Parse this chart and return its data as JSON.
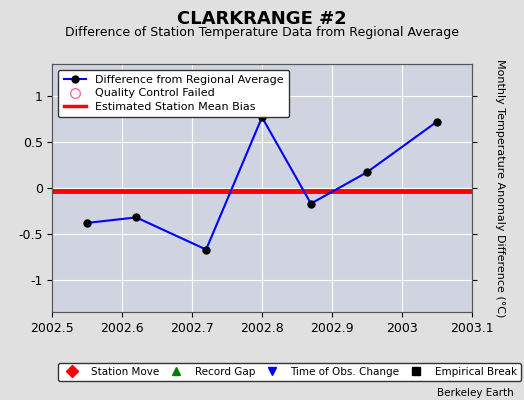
{
  "title": "CLARKRANGE #2",
  "subtitle": "Difference of Station Temperature Data from Regional Average",
  "ylabel_right": "Monthly Temperature Anomaly Difference (°C)",
  "watermark": "Berkeley Earth",
  "xlim": [
    2002.5,
    2003.1
  ],
  "ylim": [
    -1.35,
    1.35
  ],
  "yticks": [
    -1,
    -0.5,
    0,
    0.5,
    1
  ],
  "xticks": [
    2002.5,
    2002.6,
    2002.7,
    2002.8,
    2002.9,
    2003,
    2003.1
  ],
  "xtick_labels": [
    "2002.5",
    "2002.6",
    "2002.7",
    "2002.8",
    "2002.9",
    "2003",
    "2003.1"
  ],
  "line_x": [
    2002.55,
    2002.62,
    2002.72,
    2002.8,
    2002.87,
    2002.95,
    2003.05
  ],
  "line_y": [
    -0.38,
    -0.32,
    -0.67,
    0.77,
    -0.17,
    0.17,
    0.72
  ],
  "line_color": "#0000ff",
  "line_width": 1.5,
  "marker_color": "#000000",
  "marker_size": 5,
  "bias_y": -0.03,
  "bias_color": "#ff0000",
  "bias_linewidth": 3.5,
  "outer_bg": "#e0e0e0",
  "plot_bg_color": "#d0d4e0",
  "grid_color": "#ffffff",
  "legend1_entries": [
    {
      "label": "Difference from Regional Average",
      "color": "#0000ff"
    },
    {
      "label": "Quality Control Failed",
      "color": "#ff69b4"
    },
    {
      "label": "Estimated Station Mean Bias",
      "color": "#ff0000"
    }
  ],
  "legend2_entries": [
    {
      "label": "Station Move",
      "color": "#ff0000",
      "marker": "D"
    },
    {
      "label": "Record Gap",
      "color": "#008000",
      "marker": "^"
    },
    {
      "label": "Time of Obs. Change",
      "color": "#0000ff",
      "marker": "v"
    },
    {
      "label": "Empirical Break",
      "color": "#000000",
      "marker": "s"
    }
  ],
  "title_fontsize": 13,
  "subtitle_fontsize": 9,
  "tick_fontsize": 9,
  "legend_fontsize": 8,
  "legend2_fontsize": 7.5,
  "ylabel_fontsize": 8
}
